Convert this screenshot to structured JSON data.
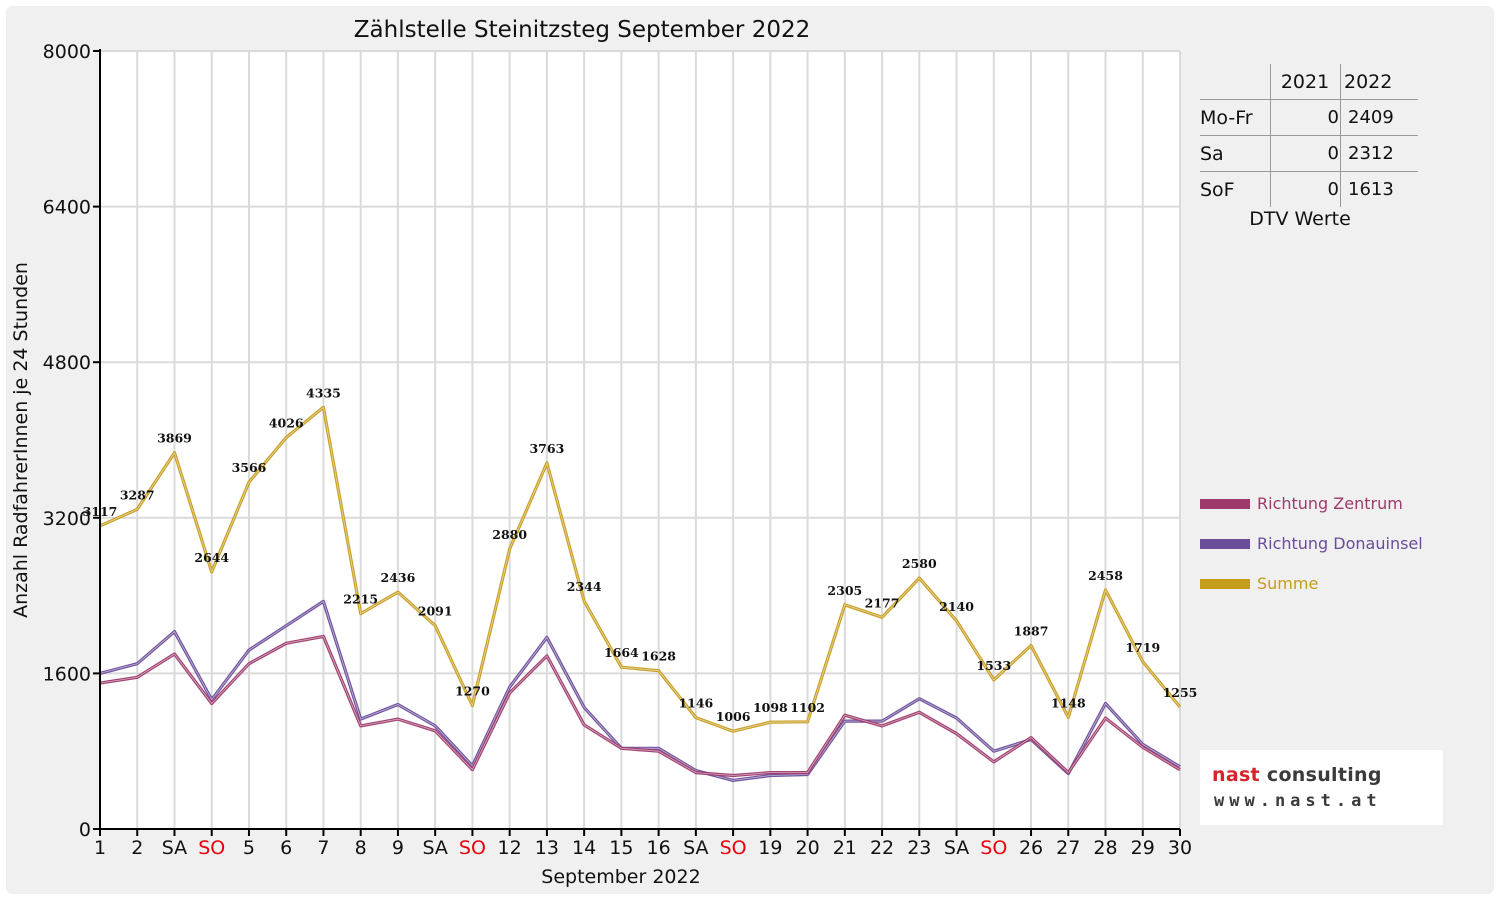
{
  "chart_data": {
    "type": "line",
    "title": "Zählstelle Steinitzsteg September 2022",
    "xlabel": "September 2022",
    "ylabel": "Anzahl RadfahrerInnen je 24 Stunden",
    "ylim": [
      0,
      8000
    ],
    "yticks": [
      0,
      1600,
      3200,
      4800,
      6400,
      8000
    ],
    "grid": true,
    "legend_position": "right",
    "categories": [
      "1",
      "2",
      "SA",
      "SO",
      "5",
      "6",
      "7",
      "8",
      "9",
      "SA",
      "SO",
      "12",
      "13",
      "14",
      "15",
      "16",
      "SA",
      "SO",
      "19",
      "20",
      "21",
      "22",
      "23",
      "SA",
      "SO",
      "26",
      "27",
      "28",
      "29",
      "30"
    ],
    "weekend_color": "#e8000d",
    "series": [
      {
        "name": "Richtung Zentrum",
        "color": "#9e3a6b",
        "values": [
          1500,
          1560,
          1800,
          1290,
          1700,
          1910,
          1980,
          1060,
          1130,
          1010,
          610,
          1400,
          1780,
          1070,
          830,
          800,
          580,
          550,
          580,
          580,
          1170,
          1060,
          1200,
          980,
          690,
          940,
          580,
          1140,
          840,
          610
        ]
      },
      {
        "name": "Richtung Donauinsel",
        "color": "#6a4d9a",
        "values": [
          1600,
          1700,
          2030,
          1330,
          1840,
          2090,
          2340,
          1130,
          1280,
          1060,
          650,
          1460,
          1970,
          1250,
          830,
          830,
          600,
          500,
          550,
          560,
          1110,
          1110,
          1340,
          1140,
          800,
          920,
          570,
          1290,
          870,
          640
        ]
      },
      {
        "name": "Summe",
        "color": "#c69c1c",
        "values": [
          3117,
          3287,
          3869,
          2644,
          3566,
          4026,
          4335,
          2215,
          2436,
          2091,
          1270,
          2880,
          3763,
          2344,
          1664,
          1628,
          1146,
          1006,
          1098,
          1102,
          2305,
          2177,
          2580,
          2140,
          1533,
          1887,
          1148,
          2458,
          1719,
          1255
        ]
      }
    ]
  },
  "dtv": {
    "headers": [
      "",
      "2021",
      "2022"
    ],
    "rows": [
      {
        "label": "Mo-Fr",
        "v2021": "0",
        "v2022": "2409"
      },
      {
        "label": "Sa",
        "v2021": "0",
        "v2022": "2312"
      },
      {
        "label": "SoF",
        "v2021": "0",
        "v2022": "1613"
      }
    ],
    "caption": "DTV Werte"
  },
  "logo": {
    "word1": "nast",
    "word2": "consulting",
    "url": "www.nast.at"
  }
}
